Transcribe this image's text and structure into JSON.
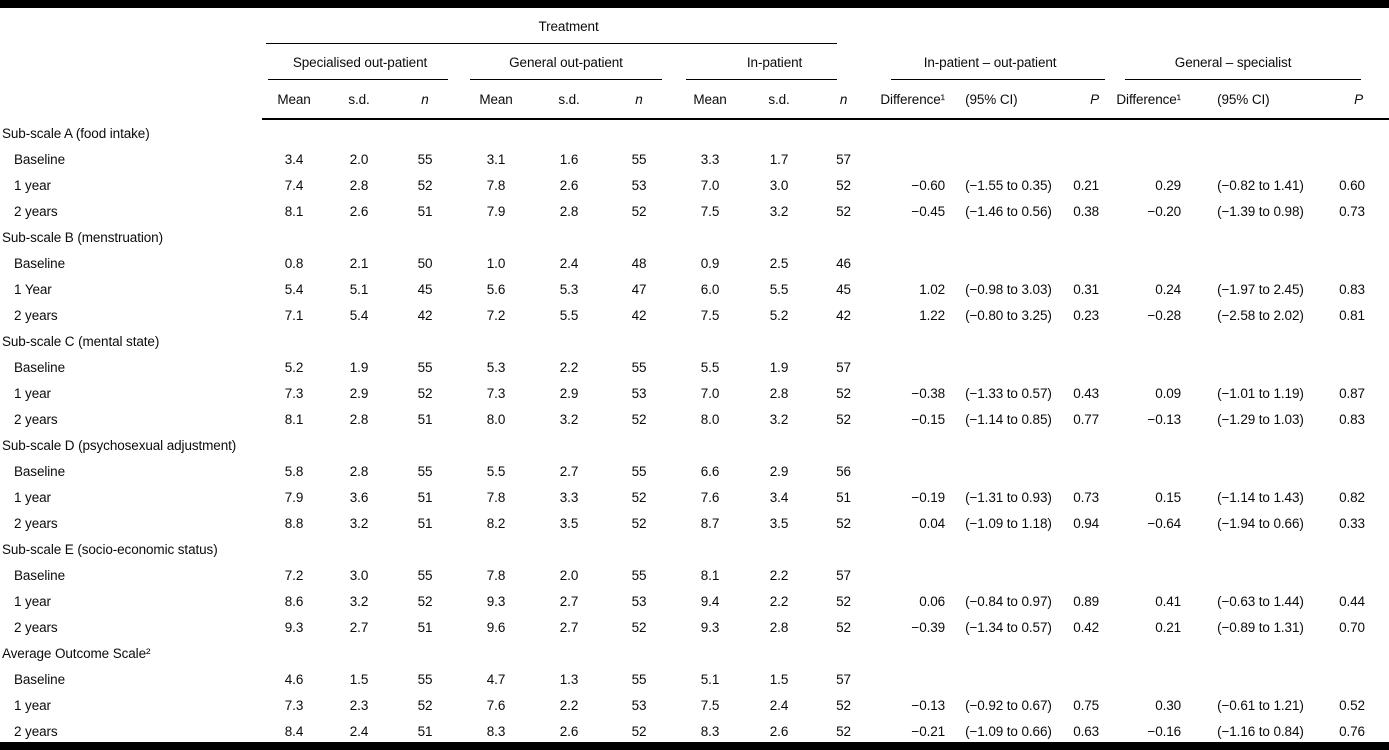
{
  "table": {
    "top_header": "Treatment",
    "col_groups": [
      {
        "label": "Specialised out-patient",
        "cols": [
          "Mean",
          "s.d.",
          "n"
        ]
      },
      {
        "label": "General out-patient",
        "cols": [
          "Mean",
          "s.d.",
          "n"
        ]
      },
      {
        "label": "In-patient",
        "cols": [
          "Mean",
          "s.d.",
          "n"
        ]
      },
      {
        "label": "In-patient – out-patient",
        "cols": [
          "Difference¹",
          "(95% CI)",
          "P"
        ]
      },
      {
        "label": "General – specialist",
        "cols": [
          "Difference¹",
          "(95% CI)",
          "P"
        ]
      }
    ],
    "sections": [
      {
        "title": "Sub-scale A (food intake)",
        "rows": [
          {
            "label": "Baseline",
            "cells": [
              "3.4",
              "2.0",
              "55",
              "3.1",
              "1.6",
              "55",
              "3.3",
              "1.7",
              "57",
              "",
              "",
              "",
              "",
              "",
              ""
            ]
          },
          {
            "label": "1 year",
            "cells": [
              "7.4",
              "2.8",
              "52",
              "7.8",
              "2.6",
              "53",
              "7.0",
              "3.0",
              "52",
              "−0.60",
              "(−1.55 to 0.35)",
              "0.21",
              "0.29",
              "(−0.82 to 1.41)",
              "0.60"
            ]
          },
          {
            "label": "2 years",
            "cells": [
              "8.1",
              "2.6",
              "51",
              "7.9",
              "2.8",
              "52",
              "7.5",
              "3.2",
              "52",
              "−0.45",
              "(−1.46 to 0.56)",
              "0.38",
              "−0.20",
              "(−1.39 to 0.98)",
              "0.73"
            ]
          }
        ]
      },
      {
        "title": "Sub-scale B (menstruation)",
        "rows": [
          {
            "label": "Baseline",
            "cells": [
              "0.8",
              "2.1",
              "50",
              "1.0",
              "2.4",
              "48",
              "0.9",
              "2.5",
              "46",
              "",
              "",
              "",
              "",
              "",
              ""
            ]
          },
          {
            "label": "1 Year",
            "cells": [
              "5.4",
              "5.1",
              "45",
              "5.6",
              "5.3",
              "47",
              "6.0",
              "5.5",
              "45",
              "1.02",
              "(−0.98 to 3.03)",
              "0.31",
              "0.24",
              "(−1.97 to 2.45)",
              "0.83"
            ]
          },
          {
            "label": "2 years",
            "cells": [
              "7.1",
              "5.4",
              "42",
              "7.2",
              "5.5",
              "42",
              "7.5",
              "5.2",
              "42",
              "1.22",
              "(−0.80 to 3.25)",
              "0.23",
              "−0.28",
              "(−2.58 to 2.02)",
              "0.81"
            ]
          }
        ]
      },
      {
        "title": "Sub-scale C (mental state)",
        "rows": [
          {
            "label": "Baseline",
            "cells": [
              "5.2",
              "1.9",
              "55",
              "5.3",
              "2.2",
              "55",
              "5.5",
              "1.9",
              "57",
              "",
              "",
              "",
              "",
              "",
              ""
            ]
          },
          {
            "label": "1 year",
            "cells": [
              "7.3",
              "2.9",
              "52",
              "7.3",
              "2.9",
              "53",
              "7.0",
              "2.8",
              "52",
              "−0.38",
              "(−1.33 to 0.57)",
              "0.43",
              "0.09",
              "(−1.01 to 1.19)",
              "0.87"
            ]
          },
          {
            "label": "2 years",
            "cells": [
              "8.1",
              "2.8",
              "51",
              "8.0",
              "3.2",
              "52",
              "8.0",
              "3.2",
              "52",
              "−0.15",
              "(−1.14 to 0.85)",
              "0.77",
              "−0.13",
              "(−1.29 to 1.03)",
              "0.83"
            ]
          }
        ]
      },
      {
        "title": "Sub-scale D (psychosexual adjustment)",
        "rows": [
          {
            "label": "Baseline",
            "cells": [
              "5.8",
              "2.8",
              "55",
              "5.5",
              "2.7",
              "55",
              "6.6",
              "2.9",
              "56",
              "",
              "",
              "",
              "",
              "",
              ""
            ]
          },
          {
            "label": "1 year",
            "cells": [
              "7.9",
              "3.6",
              "51",
              "7.8",
              "3.3",
              "52",
              "7.6",
              "3.4",
              "51",
              "−0.19",
              "(−1.31 to 0.93)",
              "0.73",
              "0.15",
              "(−1.14 to 1.43)",
              "0.82"
            ]
          },
          {
            "label": "2 years",
            "cells": [
              "8.8",
              "3.2",
              "51",
              "8.2",
              "3.5",
              "52",
              "8.7",
              "3.5",
              "52",
              "0.04",
              "(−1.09 to 1.18)",
              "0.94",
              "−0.64",
              "(−1.94 to 0.66)",
              "0.33"
            ]
          }
        ]
      },
      {
        "title": "Sub-scale E (socio-economic status)",
        "rows": [
          {
            "label": "Baseline",
            "cells": [
              "7.2",
              "3.0",
              "55",
              "7.8",
              "2.0",
              "55",
              "8.1",
              "2.2",
              "57",
              "",
              "",
              "",
              "",
              "",
              ""
            ]
          },
          {
            "label": "1 year",
            "cells": [
              "8.6",
              "3.2",
              "52",
              "9.3",
              "2.7",
              "53",
              "9.4",
              "2.2",
              "52",
              "0.06",
              "(−0.84 to 0.97)",
              "0.89",
              "0.41",
              "(−0.63 to 1.44)",
              "0.44"
            ]
          },
          {
            "label": "2 years",
            "cells": [
              "9.3",
              "2.7",
              "51",
              "9.6",
              "2.7",
              "52",
              "9.3",
              "2.8",
              "52",
              "−0.39",
              "(−1.34 to 0.57)",
              "0.42",
              "0.21",
              "(−0.89 to 1.31)",
              "0.70"
            ]
          }
        ]
      },
      {
        "title": "Average Outcome Scale²",
        "rows": [
          {
            "label": "Baseline",
            "cells": [
              "4.6",
              "1.5",
              "55",
              "4.7",
              "1.3",
              "55",
              "5.1",
              "1.5",
              "57",
              "",
              "",
              "",
              "",
              "",
              ""
            ]
          },
          {
            "label": "1 year",
            "cells": [
              "7.3",
              "2.3",
              "52",
              "7.6",
              "2.2",
              "53",
              "7.5",
              "2.4",
              "52",
              "−0.13",
              "(−0.92 to 0.67)",
              "0.75",
              "0.30",
              "(−0.61 to 1.21)",
              "0.52"
            ]
          },
          {
            "label": "2 years",
            "cells": [
              "8.4",
              "2.4",
              "51",
              "8.3",
              "2.6",
              "52",
              "8.3",
              "2.6",
              "52",
              "−0.21",
              "(−1.09 to 0.66)",
              "0.63",
              "−0.16",
              "(−1.16 to 0.84)",
              "0.76"
            ]
          }
        ]
      }
    ]
  }
}
